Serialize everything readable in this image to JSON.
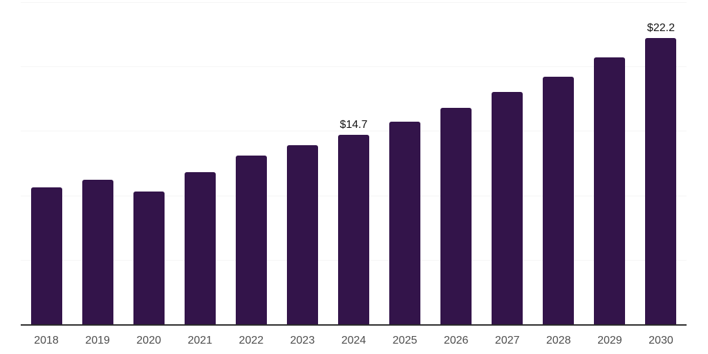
{
  "chart_data": {
    "type": "bar",
    "title": "",
    "xlabel": "",
    "ylabel": "",
    "categories": [
      "2018",
      "2019",
      "2020",
      "2021",
      "2022",
      "2023",
      "2024",
      "2025",
      "2026",
      "2027",
      "2028",
      "2029",
      "2030"
    ],
    "values": [
      10.6,
      11.2,
      10.3,
      11.8,
      13.1,
      13.9,
      14.7,
      15.7,
      16.8,
      18.0,
      19.2,
      20.7,
      22.2
    ],
    "data_labels": {
      "2024": "$14.7",
      "2030": "$22.2"
    },
    "ylim": [
      0,
      25
    ],
    "grid_step": 5,
    "grid": "horizontal-only",
    "y_tick_labels_shown": false,
    "legend": "none",
    "colors": {
      "bar": "#33144a",
      "grid": "#f5f5f5",
      "axis": "#2b2b2b",
      "tick_label": "#4d4d4d",
      "value_label": "#111111",
      "background": "#ffffff"
    }
  }
}
